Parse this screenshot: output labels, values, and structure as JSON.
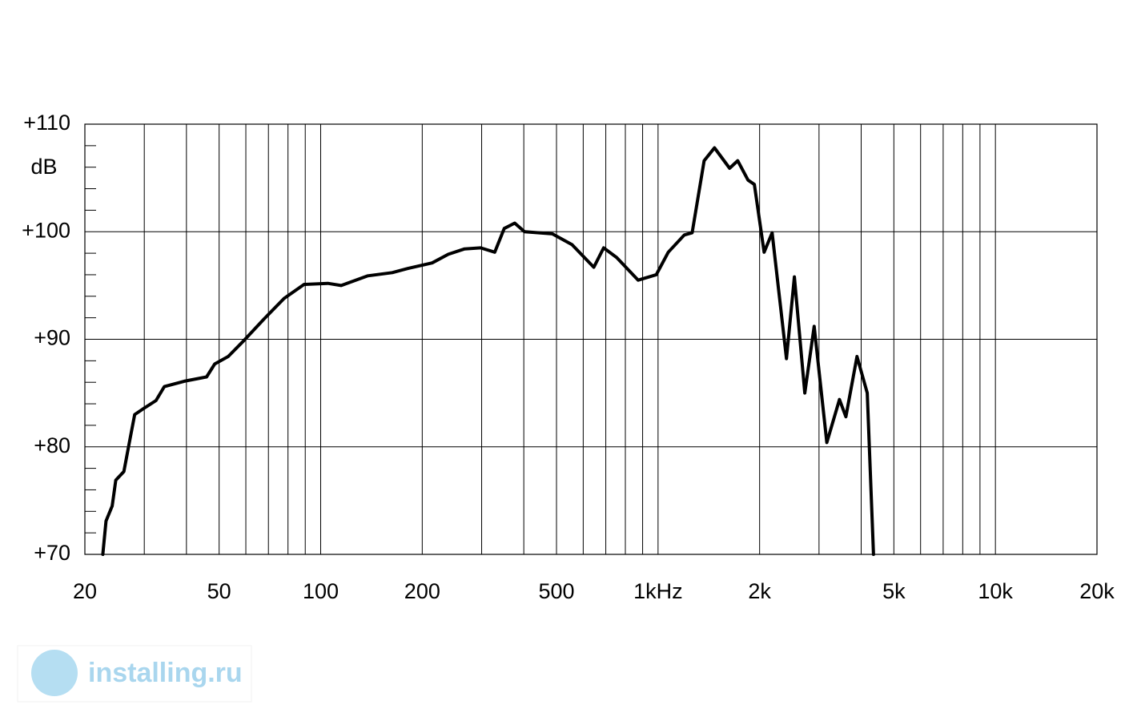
{
  "chart_data": {
    "type": "line",
    "ylabel": "dB",
    "x": [
      22.6,
      23.1,
      24.1,
      24.7,
      26.1,
      27.2,
      28.1,
      30.0,
      32.5,
      34.4,
      39.4,
      45.9,
      48.5,
      53.2,
      59.3,
      68.0,
      77.9,
      89.3,
      105,
      115,
      138,
      163,
      182,
      214,
      239,
      267,
      298,
      328,
      350,
      376,
      402,
      486,
      556,
      645,
      690,
      754,
      873,
      988,
      1072,
      1196,
      1262,
      1370,
      1470,
      1630,
      1722,
      1848,
      1930,
      2062,
      2178,
      2402,
      2536,
      2722,
      2902,
      3164,
      3450,
      3604,
      3888,
      4170,
      4352
    ],
    "values": [
      70,
      73.1,
      74.5,
      76.9,
      77.7,
      80.7,
      83.0,
      83.6,
      84.3,
      85.6,
      86.1,
      86.5,
      87.7,
      88.4,
      89.9,
      91.9,
      93.8,
      95.1,
      95.2,
      95.0,
      95.9,
      96.2,
      96.6,
      97.1,
      97.9,
      98.4,
      98.5,
      98.1,
      100.3,
      100.8,
      100,
      99.8,
      98.8,
      96.7,
      98.5,
      97.6,
      95.5,
      96.0,
      98.1,
      99.7,
      99.9,
      106.6,
      107.8,
      105.9,
      106.6,
      104.8,
      104.4,
      98.1,
      99.9,
      88.2,
      95.8,
      85.0,
      91.2,
      80.4,
      84.4,
      82.8,
      88.4,
      85.0,
      70
    ],
    "color": "#000000",
    "xscale": "log",
    "xlim": [
      20,
      20000
    ],
    "xticks": [
      20,
      50,
      100,
      200,
      500,
      {
        "value": 1000,
        "label": "1kHz"
      },
      {
        "value": 2000,
        "label": "2k"
      },
      {
        "value": 5000,
        "label": "5k"
      },
      {
        "value": 10000,
        "label": "10k"
      },
      {
        "value": 20000,
        "label": "20k"
      }
    ],
    "xgrid": [
      30,
      40,
      60,
      70,
      80,
      90,
      300,
      400,
      600,
      700,
      800,
      900,
      3000,
      4000,
      6000,
      7000,
      8000,
      9000
    ],
    "ylim": [
      70,
      110
    ],
    "yticks": [
      {
        "value": 70,
        "label": "+70"
      },
      {
        "value": 80,
        "label": "+80"
      },
      {
        "value": 90,
        "label": "+90"
      },
      {
        "value": 100,
        "label": "+100"
      },
      {
        "value": 110,
        "label": "+110"
      }
    ],
    "yminor": [
      72,
      74,
      76,
      78,
      82,
      84,
      86,
      88,
      92,
      94,
      96,
      98,
      102,
      104,
      106,
      108
    ],
    "grid": true
  },
  "watermark": "installing.ru"
}
